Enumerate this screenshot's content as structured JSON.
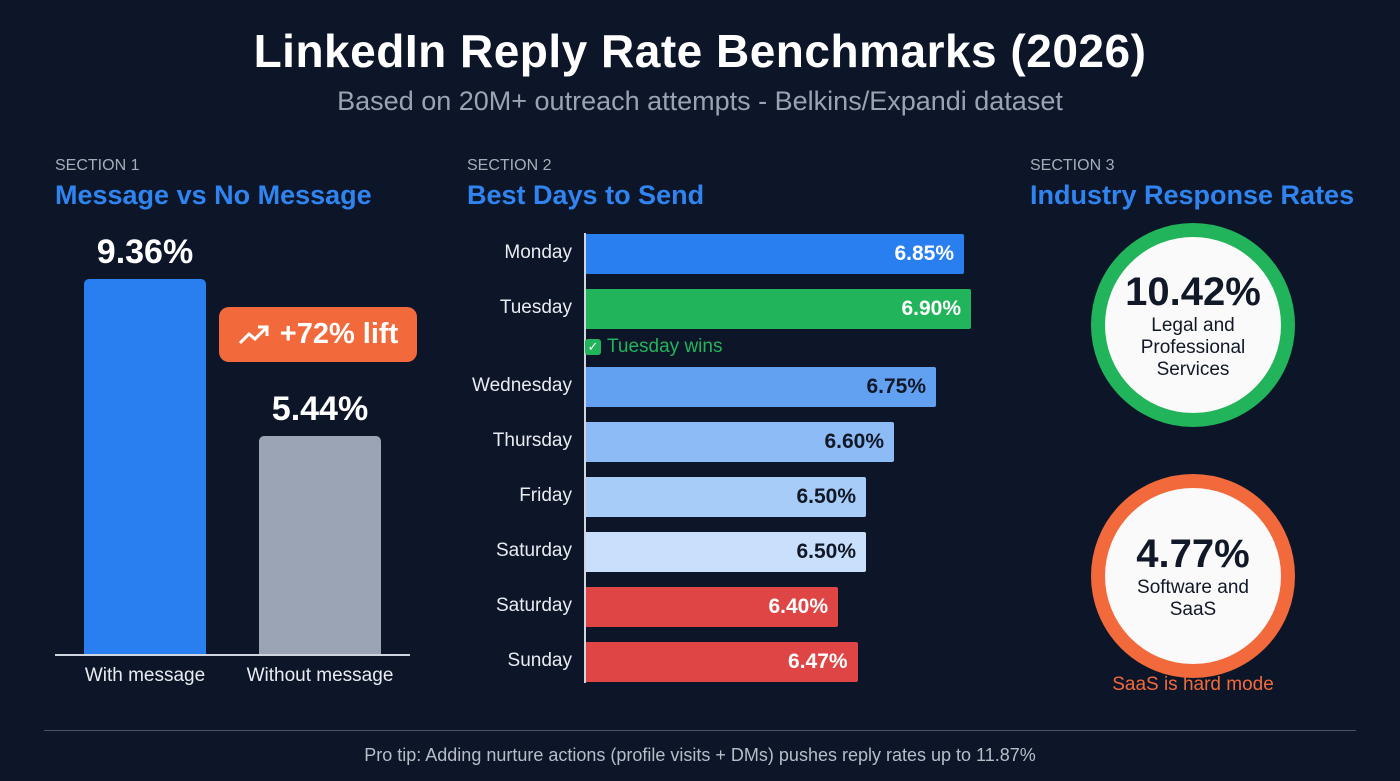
{
  "header": {
    "title": "LinkedIn Reply Rate Benchmarks (2026)",
    "subtitle": "Based on 20M+ outreach attempts - Belkins/Expandi dataset"
  },
  "colors": {
    "background": "#0d1628",
    "blue": "#2a7ff0",
    "gray": "#9aa4b4",
    "green": "#22b45a",
    "red": "#e04545",
    "orange": "#f26a3b"
  },
  "chart_data": [
    {
      "type": "bar",
      "section_label": "SECTION 1",
      "title": "Message vs No Message",
      "categories": [
        "With message",
        "Without message"
      ],
      "values": [
        9.36,
        5.44
      ],
      "value_labels": [
        "9.36%",
        "5.44%"
      ],
      "unit": "%",
      "annotation": {
        "icon": "trending-up-icon",
        "text": "+72% lift"
      }
    },
    {
      "type": "bar",
      "orientation": "horizontal",
      "section_label": "SECTION 2",
      "title": "Best Days to Send",
      "categories": [
        "Monday",
        "Tuesday",
        "Wednesday",
        "Thursday",
        "Friday",
        "Saturday",
        "Saturday",
        "Sunday"
      ],
      "values": [
        6.85,
        6.9,
        6.75,
        6.6,
        6.5,
        6.5,
        6.4,
        6.47
      ],
      "value_labels": [
        "6.85%",
        "6.90%",
        "6.75%",
        "6.60%",
        "6.50%",
        "6.50%",
        "6.40%",
        "6.47%"
      ],
      "bar_colors": [
        "#2a7ff0",
        "#22b45a",
        "#62a0f2",
        "#8dbbf6",
        "#a8ccf8",
        "#c9e0fc",
        "#e04545",
        "#e04545"
      ],
      "label_colors": [
        "#ffffff",
        "#ffffff",
        "#111827",
        "#111827",
        "#111827",
        "#111827",
        "#ffffff",
        "#ffffff"
      ],
      "annotation": "Tuesday wins"
    },
    {
      "type": "table",
      "section_label": "SECTION 3",
      "title": "Industry Response Rates",
      "items": [
        {
          "value": "10.42%",
          "industry": "Legal and Professional Services",
          "color": "#22b45a"
        },
        {
          "value": "4.77%",
          "industry": "Software and SaaS",
          "color": "#f26a3b"
        }
      ],
      "note": "SaaS is hard mode"
    }
  ],
  "footer": {
    "tip": "Pro tip: Adding nurture actions (profile visits + DMs) pushes reply rates up to 11.87%"
  }
}
